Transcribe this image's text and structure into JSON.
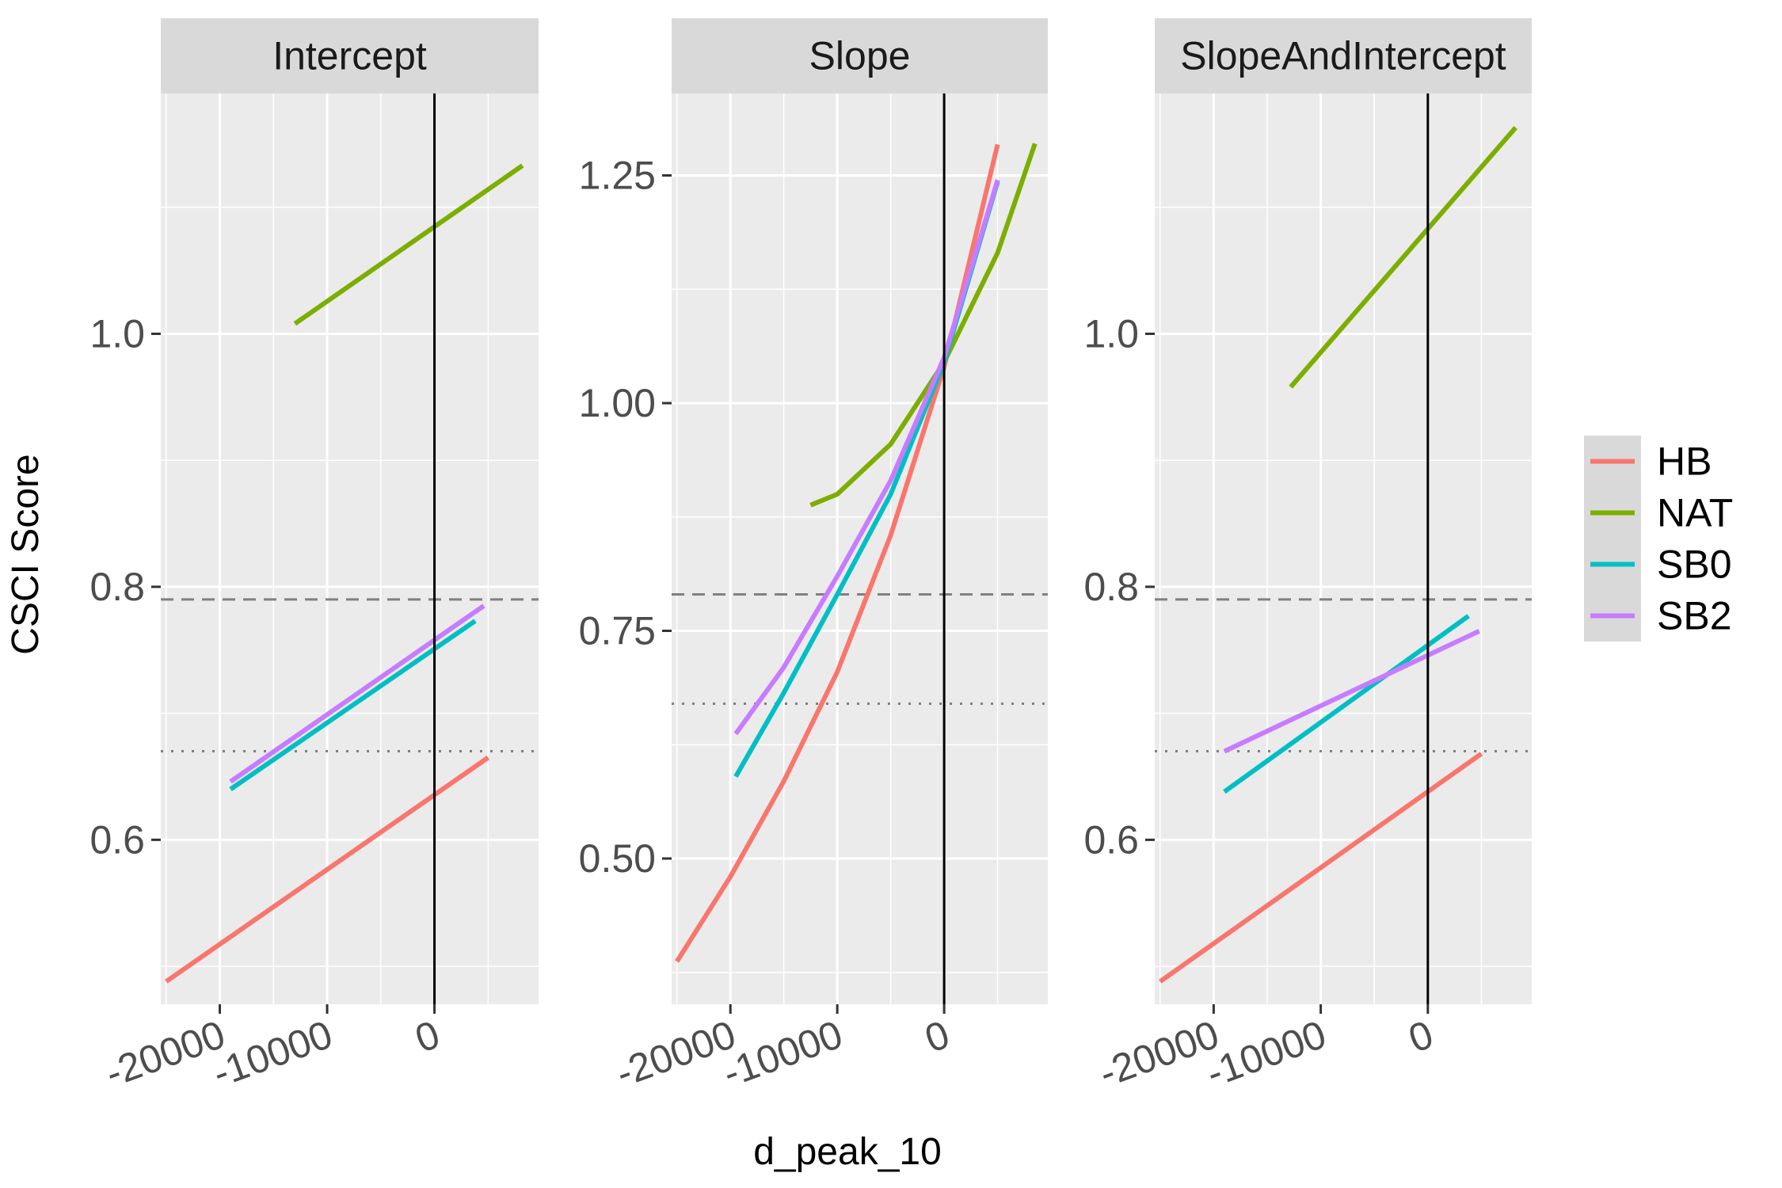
{
  "chart_data": {
    "type": "line",
    "facet_variable": "",
    "xlabel": "d_peak_10",
    "ylabel": "CSCI Score",
    "legend": {
      "position": "right",
      "entries": [
        "HB",
        "NAT",
        "SB0",
        "SB2"
      ]
    },
    "colors": {
      "HB": "#F8766D",
      "NAT": "#7CAE00",
      "SB0": "#00BFC4",
      "SB2": "#C77CFF"
    },
    "reference_lines": [
      {
        "type": "vline",
        "x": 0,
        "style": "solid"
      },
      {
        "type": "hline",
        "y": 0.79,
        "style": "dashed"
      },
      {
        "type": "hline",
        "y": 0.67,
        "style": "dotted"
      }
    ],
    "grid": true,
    "x_ticks": [
      -20000,
      -10000,
      0
    ],
    "x_tick_labels": [
      "-20000",
      "-10000",
      "0"
    ],
    "panels": [
      {
        "title": "Intercept",
        "xlim": [
          -25500,
          9700
        ],
        "ylim": [
          0.47,
          1.19
        ],
        "y_ticks": [
          0.6,
          0.8,
          1.0
        ],
        "y_tick_labels": [
          "0.6",
          "0.8",
          "1.0"
        ],
        "series": [
          {
            "name": "HB",
            "points": [
              [
                -25000,
                0.488
              ],
              [
                5000,
                0.665
              ]
            ]
          },
          {
            "name": "NAT",
            "points": [
              [
                -13000,
                1.008
              ],
              [
                8200,
                1.133
              ]
            ]
          },
          {
            "name": "SB0",
            "points": [
              [
                -19000,
                0.64
              ],
              [
                3800,
                0.773
              ]
            ]
          },
          {
            "name": "SB2",
            "points": [
              [
                -19000,
                0.646
              ],
              [
                4600,
                0.785
              ]
            ]
          }
        ]
      },
      {
        "title": "Slope",
        "xlim": [
          -25500,
          9700
        ],
        "ylim": [
          0.34,
          1.34
        ],
        "y_ticks": [
          0.5,
          0.75,
          1.0,
          1.25
        ],
        "y_tick_labels": [
          "0.50",
          "0.75",
          "1.00",
          "1.25"
        ],
        "series": [
          {
            "name": "HB",
            "points": [
              [
                -25000,
                0.387
              ],
              [
                -20000,
                0.48
              ],
              [
                -15000,
                0.585
              ],
              [
                -10000,
                0.705
              ],
              [
                -5000,
                0.855
              ],
              [
                0,
                1.04
              ],
              [
                5000,
                1.284
              ]
            ]
          },
          {
            "name": "NAT",
            "points": [
              [
                -12500,
                0.888
              ],
              [
                -10000,
                0.9
              ],
              [
                -5000,
                0.955
              ],
              [
                0,
                1.045
              ],
              [
                5000,
                1.165
              ],
              [
                8500,
                1.285
              ]
            ]
          },
          {
            "name": "SB0",
            "points": [
              [
                -19500,
                0.59
              ],
              [
                -15000,
                0.682
              ],
              [
                -10000,
                0.79
              ],
              [
                -5000,
                0.9
              ],
              [
                0,
                1.045
              ],
              [
                5000,
                1.243
              ]
            ]
          },
          {
            "name": "SB2",
            "points": [
              [
                -19500,
                0.637
              ],
              [
                -15000,
                0.71
              ],
              [
                -10000,
                0.81
              ],
              [
                -5000,
                0.915
              ],
              [
                0,
                1.05
              ],
              [
                5000,
                1.245
              ]
            ]
          }
        ]
      },
      {
        "title": "SlopeAndIntercept",
        "xlim": [
          -25500,
          9700
        ],
        "ylim": [
          0.47,
          1.19
        ],
        "y_ticks": [
          0.6,
          0.8,
          1.0
        ],
        "y_tick_labels": [
          "0.6",
          "0.8",
          "1.0"
        ],
        "series": [
          {
            "name": "HB",
            "points": [
              [
                -25000,
                0.488
              ],
              [
                5000,
                0.668
              ]
            ]
          },
          {
            "name": "NAT",
            "points": [
              [
                -12800,
                0.958
              ],
              [
                8200,
                1.163
              ]
            ]
          },
          {
            "name": "SB0",
            "points": [
              [
                -19000,
                0.638
              ],
              [
                3800,
                0.777
              ]
            ]
          },
          {
            "name": "SB2",
            "points": [
              [
                -19000,
                0.67
              ],
              [
                4800,
                0.765
              ]
            ]
          }
        ]
      }
    ]
  }
}
